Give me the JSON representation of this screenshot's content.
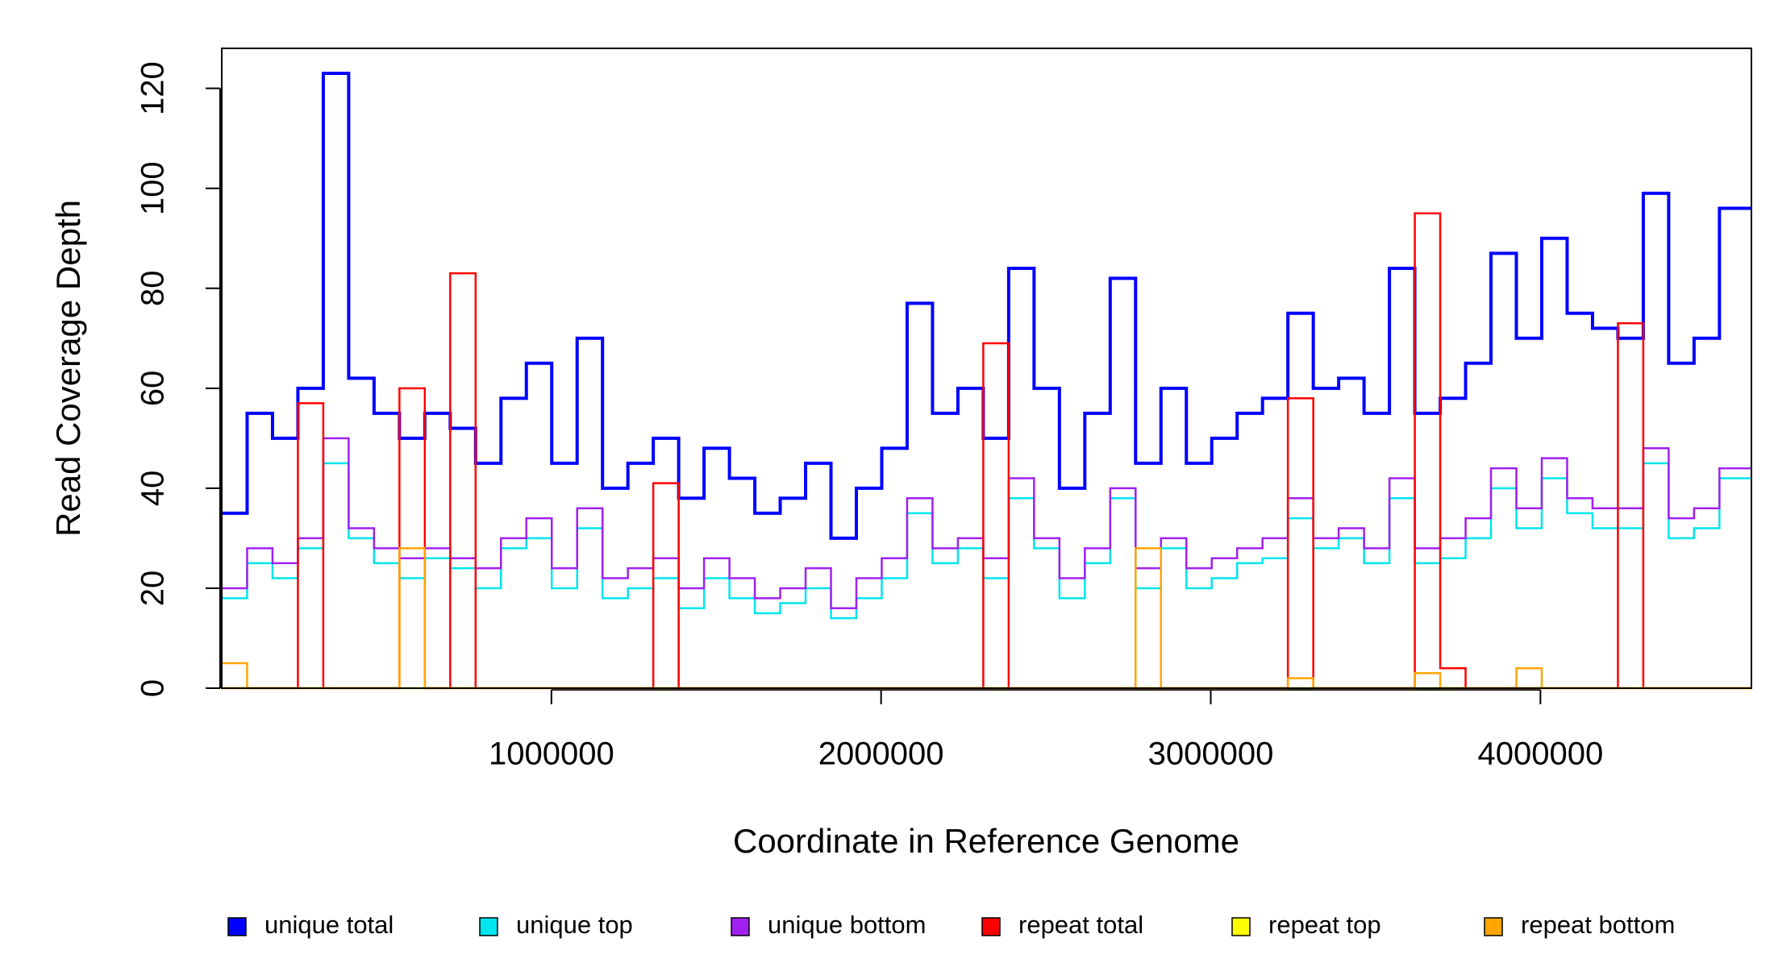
{
  "chart_data": {
    "type": "step",
    "x_label": "Coordinate in Reference Genome",
    "y_label": "Read Coverage Depth",
    "x": [
      0,
      77000,
      154000,
      231000,
      308000,
      385000,
      462000,
      539000,
      616000,
      693000,
      770000,
      847000,
      924000,
      1001000,
      1078000,
      1155000,
      1232000,
      1309000,
      1386000,
      1463000,
      1540000,
      1617000,
      1694000,
      1771000,
      1848000,
      1925000,
      2002000,
      2079000,
      2156000,
      2233000,
      2310000,
      2387000,
      2464000,
      2541000,
      2618000,
      2695000,
      2772000,
      2849000,
      2926000,
      3003000,
      3080000,
      3157000,
      3234000,
      3311000,
      3388000,
      3465000,
      3542000,
      3619000,
      3696000,
      3773000,
      3850000,
      3927000,
      4004000,
      4081000,
      4158000,
      4235000,
      4312000,
      4389000,
      4466000,
      4543000
    ],
    "series": [
      {
        "name": "unique total",
        "color": "#0000ff",
        "values": [
          35,
          55,
          50,
          60,
          123,
          62,
          55,
          50,
          55,
          52,
          45,
          58,
          65,
          45,
          70,
          40,
          45,
          50,
          38,
          48,
          42,
          35,
          38,
          45,
          30,
          40,
          48,
          77,
          55,
          60,
          50,
          84,
          60,
          40,
          55,
          82,
          45,
          60,
          45,
          50,
          55,
          58,
          75,
          60,
          62,
          55,
          84,
          55,
          58,
          65,
          87,
          70,
          90,
          75,
          72,
          70,
          99,
          65,
          70,
          96
        ]
      },
      {
        "name": "unique top",
        "color": "#00e5ee",
        "values": [
          18,
          25,
          22,
          28,
          45,
          30,
          25,
          22,
          26,
          24,
          20,
          28,
          30,
          20,
          32,
          18,
          20,
          22,
          16,
          22,
          18,
          15,
          17,
          20,
          14,
          18,
          22,
          35,
          25,
          28,
          22,
          38,
          28,
          18,
          25,
          38,
          20,
          28,
          20,
          22,
          25,
          26,
          34,
          28,
          30,
          25,
          38,
          25,
          26,
          30,
          40,
          32,
          42,
          35,
          32,
          32,
          45,
          30,
          32,
          42
        ]
      },
      {
        "name": "unique bottom",
        "color": "#a020f0",
        "values": [
          20,
          28,
          25,
          30,
          50,
          32,
          28,
          26,
          28,
          26,
          24,
          30,
          34,
          24,
          36,
          22,
          24,
          26,
          20,
          26,
          22,
          18,
          20,
          24,
          16,
          22,
          26,
          38,
          28,
          30,
          26,
          42,
          30,
          22,
          28,
          40,
          24,
          30,
          24,
          26,
          28,
          30,
          38,
          30,
          32,
          28,
          42,
          28,
          30,
          34,
          44,
          36,
          46,
          38,
          36,
          36,
          48,
          34,
          36,
          44
        ]
      },
      {
        "name": "repeat total",
        "color": "#ff0000",
        "values": [
          0,
          0,
          0,
          57,
          0,
          0,
          0,
          60,
          0,
          83,
          0,
          0,
          0,
          0,
          0,
          0,
          0,
          41,
          0,
          0,
          0,
          0,
          0,
          0,
          0,
          0,
          0,
          0,
          0,
          0,
          69,
          0,
          0,
          0,
          0,
          0,
          0,
          0,
          0,
          0,
          0,
          0,
          58,
          0,
          0,
          0,
          0,
          95,
          4,
          0,
          0,
          0,
          0,
          0,
          0,
          73,
          0,
          0,
          0,
          0
        ]
      },
      {
        "name": "repeat top",
        "color": "#ffff00",
        "values": [
          0,
          0,
          0,
          0,
          0,
          0,
          0,
          0,
          0,
          0,
          0,
          0,
          0,
          0,
          0,
          0,
          0,
          0,
          0,
          0,
          0,
          0,
          0,
          0,
          0,
          0,
          0,
          0,
          0,
          0,
          0,
          0,
          0,
          0,
          0,
          0,
          0,
          0,
          0,
          0,
          0,
          0,
          0,
          0,
          0,
          0,
          0,
          0,
          0,
          0,
          0,
          0,
          0,
          0,
          0,
          0,
          0,
          0,
          0,
          0
        ]
      },
      {
        "name": "repeat bottom",
        "color": "#ffa500",
        "values": [
          5,
          0,
          0,
          0,
          0,
          0,
          0,
          28,
          0,
          0,
          0,
          0,
          0,
          0,
          0,
          0,
          0,
          0,
          0,
          0,
          0,
          0,
          0,
          0,
          0,
          0,
          0,
          0,
          0,
          0,
          0,
          0,
          0,
          0,
          0,
          0,
          28,
          0,
          0,
          0,
          0,
          0,
          2,
          0,
          0,
          0,
          0,
          3,
          0,
          0,
          0,
          4,
          0,
          0,
          0,
          0,
          0,
          0,
          0,
          0
        ]
      }
    ],
    "xlim": [
      0,
      4640000
    ],
    "xticks": [
      1000000,
      2000000,
      3000000,
      4000000
    ],
    "ylim": [
      0,
      128
    ],
    "yticks": [
      0,
      20,
      40,
      60,
      80,
      100,
      120
    ],
    "legend": "bottom"
  }
}
